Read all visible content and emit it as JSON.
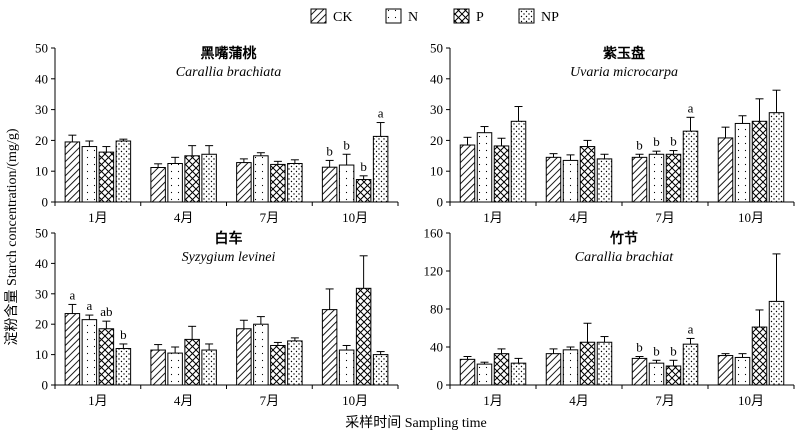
{
  "legend": {
    "items": [
      {
        "key": "CK",
        "label": "CK"
      },
      {
        "key": "N",
        "label": "N"
      },
      {
        "key": "P",
        "label": "P"
      },
      {
        "key": "NP",
        "label": "NP"
      }
    ]
  },
  "axes": {
    "ylabel": "淀粉含量 Starch concentration/(mg/g)",
    "xlabel": "采样时间 Sampling time"
  },
  "chart_data": [
    {
      "type": "bar",
      "title": "黑嘴蒲桃",
      "subtitle": "Carallia brachiata",
      "categories": [
        "1月",
        "4月",
        "7月",
        "10月"
      ],
      "ylim": [
        0,
        50
      ],
      "yticks": [
        0,
        10,
        20,
        30,
        40,
        50
      ],
      "series": [
        {
          "name": "CK",
          "values": [
            19.5,
            11.2,
            12.8,
            11.3
          ],
          "errors": [
            2.2,
            1.2,
            1.2,
            2.2
          ]
        },
        {
          "name": "N",
          "values": [
            18.0,
            12.5,
            15.0,
            12.0
          ],
          "errors": [
            1.8,
            2.0,
            1.0,
            3.5
          ]
        },
        {
          "name": "P",
          "values": [
            16.2,
            15.0,
            12.2,
            7.3
          ],
          "errors": [
            1.8,
            3.3,
            1.0,
            1.2
          ]
        },
        {
          "name": "NP",
          "values": [
            19.8,
            15.5,
            12.5,
            21.3
          ],
          "errors": [
            0.6,
            2.8,
            1.2,
            4.5
          ]
        }
      ],
      "labels": [
        [
          null,
          null,
          null,
          "b"
        ],
        [
          null,
          null,
          null,
          "b"
        ],
        [
          null,
          null,
          null,
          "b"
        ],
        [
          null,
          null,
          null,
          "a"
        ]
      ]
    },
    {
      "type": "bar",
      "title": "紫玉盘",
      "subtitle": "Uvaria microcarpa",
      "categories": [
        "1月",
        "4月",
        "7月",
        "10月"
      ],
      "ylim": [
        0,
        50
      ],
      "yticks": [
        0,
        10,
        20,
        30,
        40,
        50
      ],
      "series": [
        {
          "name": "CK",
          "values": [
            18.5,
            14.5,
            14.5,
            20.8
          ],
          "errors": [
            2.5,
            1.2,
            1.0,
            3.5
          ]
        },
        {
          "name": "N",
          "values": [
            22.5,
            13.5,
            15.5,
            25.5
          ],
          "errors": [
            2.0,
            1.8,
            1.0,
            2.5
          ]
        },
        {
          "name": "P",
          "values": [
            18.2,
            18.0,
            15.5,
            26.2
          ],
          "errors": [
            2.5,
            2.0,
            1.2,
            7.3
          ]
        },
        {
          "name": "NP",
          "values": [
            26.2,
            14.0,
            23.0,
            29.0
          ],
          "errors": [
            4.8,
            1.5,
            4.5,
            7.3
          ]
        }
      ],
      "labels": [
        [
          null,
          null,
          "b",
          null
        ],
        [
          null,
          null,
          "b",
          null
        ],
        [
          null,
          null,
          "b",
          null
        ],
        [
          null,
          null,
          "a",
          null
        ]
      ]
    },
    {
      "type": "bar",
      "title": "白车",
      "subtitle": "Syzygium levinei",
      "categories": [
        "1月",
        "4月",
        "7月",
        "10月"
      ],
      "ylim": [
        0,
        50
      ],
      "yticks": [
        0,
        10,
        20,
        30,
        40,
        50
      ],
      "series": [
        {
          "name": "CK",
          "values": [
            23.5,
            11.5,
            18.5,
            24.8
          ],
          "errors": [
            3.0,
            1.8,
            2.8,
            6.8
          ]
        },
        {
          "name": "N",
          "values": [
            21.5,
            10.5,
            20.0,
            11.5
          ],
          "errors": [
            1.5,
            2.0,
            2.5,
            1.5
          ]
        },
        {
          "name": "P",
          "values": [
            18.5,
            15.0,
            13.0,
            31.8
          ],
          "errors": [
            2.5,
            4.3,
            1.0,
            10.7
          ]
        },
        {
          "name": "NP",
          "values": [
            12.0,
            11.5,
            14.5,
            10.0
          ],
          "errors": [
            1.5,
            2.0,
            1.0,
            1.0
          ]
        }
      ],
      "labels": [
        [
          "a",
          null,
          null,
          null
        ],
        [
          "a",
          null,
          null,
          null
        ],
        [
          "ab",
          null,
          null,
          null
        ],
        [
          "b",
          null,
          null,
          null
        ]
      ]
    },
    {
      "type": "bar",
      "title": "竹节",
      "subtitle": "Carallia brachiat",
      "categories": [
        "1月",
        "4月",
        "7月",
        "10月"
      ],
      "ylim": [
        0,
        160
      ],
      "yticks": [
        0,
        40,
        80,
        120,
        160
      ],
      "series": [
        {
          "name": "CK",
          "values": [
            27,
            33,
            28,
            31
          ],
          "errors": [
            3,
            5,
            2,
            2
          ]
        },
        {
          "name": "N",
          "values": [
            22,
            37,
            23,
            29
          ],
          "errors": [
            2,
            3,
            3,
            4
          ]
        },
        {
          "name": "P",
          "values": [
            33,
            45,
            20,
            61
          ],
          "errors": [
            5,
            20,
            6,
            18
          ]
        },
        {
          "name": "NP",
          "values": [
            23,
            45,
            43,
            88
          ],
          "errors": [
            5,
            6,
            6,
            50
          ]
        }
      ],
      "labels": [
        [
          null,
          null,
          "b",
          null
        ],
        [
          null,
          null,
          "b",
          null
        ],
        [
          null,
          null,
          "b",
          null
        ],
        [
          null,
          null,
          "a",
          null
        ]
      ]
    }
  ]
}
